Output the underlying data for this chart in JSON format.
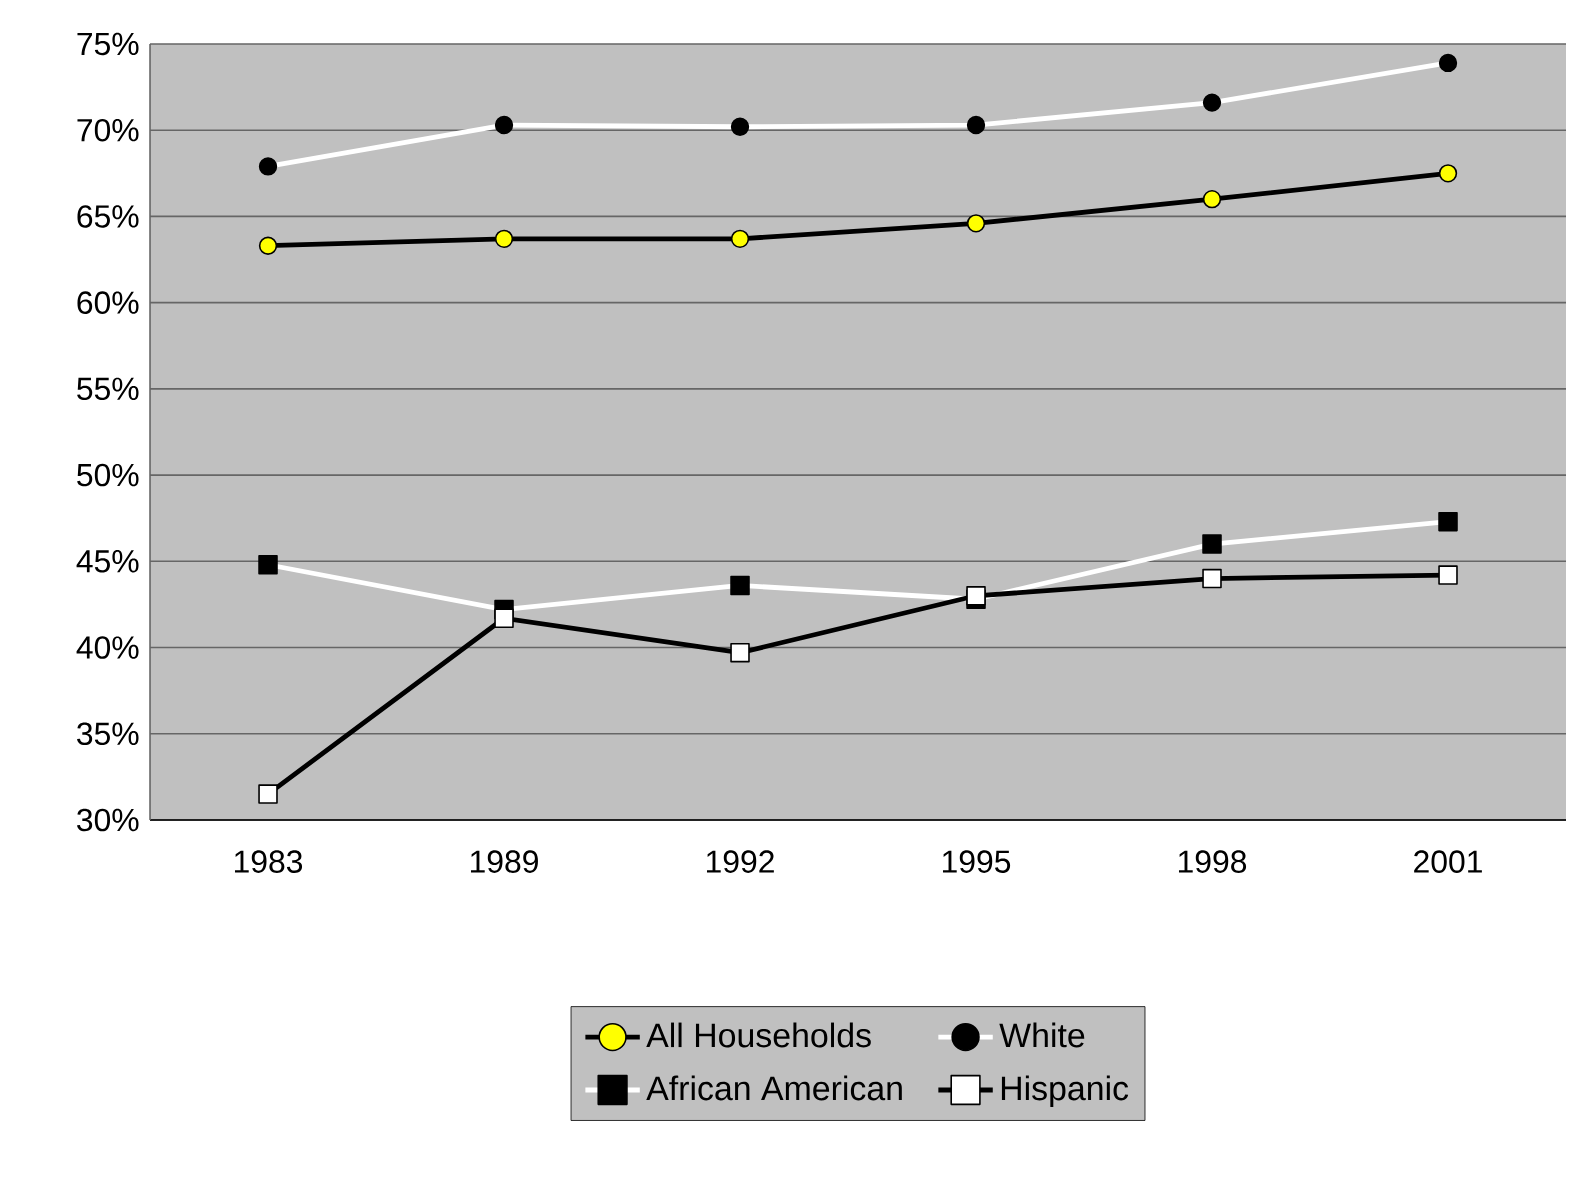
{
  "chart_data": {
    "type": "line",
    "categories": [
      "1983",
      "1989",
      "1992",
      "1995",
      "1998",
      "2001"
    ],
    "series": [
      {
        "name": "All Households",
        "color": "#ffff00",
        "marker": "circle",
        "values": [
          63.3,
          63.7,
          63.7,
          64.6,
          66.0,
          67.5
        ]
      },
      {
        "name": "White",
        "color": "#000000",
        "marker": "circle",
        "values": [
          67.9,
          70.3,
          70.2,
          70.3,
          71.6,
          73.9
        ]
      },
      {
        "name": "African American",
        "color": "#000000",
        "marker": "square",
        "values": [
          44.8,
          42.2,
          43.6,
          42.8,
          46.0,
          47.3
        ]
      },
      {
        "name": "Hispanic",
        "color": "#ffffff",
        "marker": "square",
        "values": [
          31.5,
          41.7,
          39.7,
          43.0,
          44.0,
          44.2
        ]
      }
    ],
    "ylim": [
      30,
      75
    ],
    "yticks": [
      {
        "value": 30,
        "label": "30%"
      },
      {
        "value": 35,
        "label": "35%"
      },
      {
        "value": 40,
        "label": "40%"
      },
      {
        "value": 45,
        "label": "45%"
      },
      {
        "value": 50,
        "label": "50%"
      },
      {
        "value": 55,
        "label": "55%"
      },
      {
        "value": 60,
        "label": "60%"
      },
      {
        "value": 65,
        "label": "65%"
      },
      {
        "value": 70,
        "label": "70%"
      },
      {
        "value": 75,
        "label": "75%"
      }
    ],
    "grid": "y",
    "legend": "bottom",
    "line_style": "solid"
  }
}
